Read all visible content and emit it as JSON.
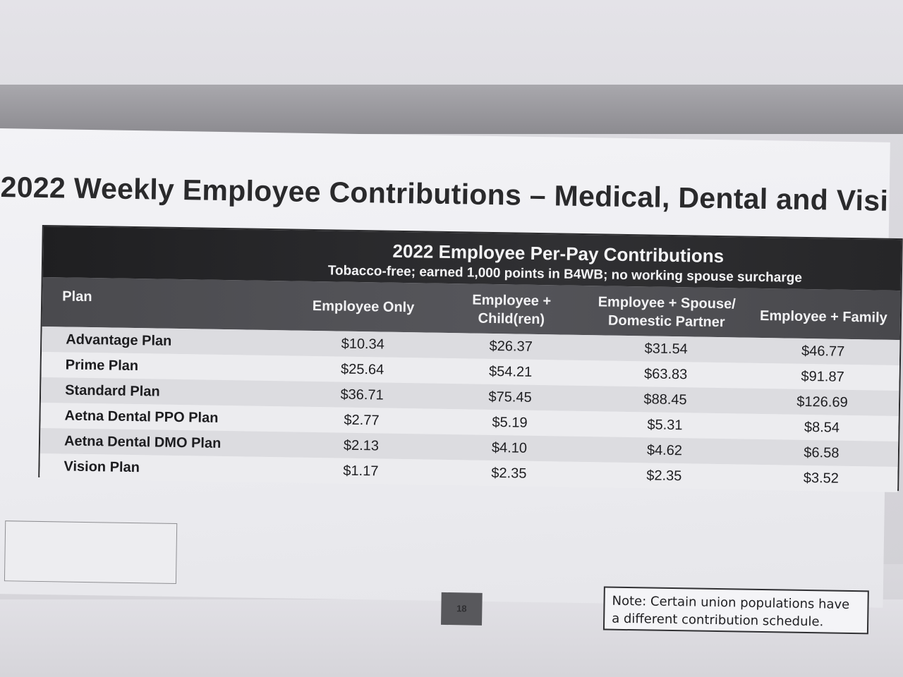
{
  "page_title": "2022 Weekly Employee Contributions – Medical, Dental and Visi",
  "table": {
    "title": "2022 Employee Per-Pay Contributions",
    "subtitle": "Tobacco-free; earned 1,000 points in B4WB; no working spouse surcharge",
    "columns": {
      "plan": "Plan",
      "employee_only": "Employee Only",
      "employee_children_l1": "Employee +",
      "employee_children_l2": "Child(ren)",
      "employee_spouse_l1": "Employee + Spouse/",
      "employee_spouse_l2": "Domestic Partner",
      "employee_family": "Employee + Family"
    },
    "rows": [
      {
        "plan": "Advantage Plan",
        "employee_only": "$10.34",
        "employee_children": "$26.37",
        "employee_spouse": "$31.54",
        "employee_family": "$46.77"
      },
      {
        "plan": "Prime Plan",
        "employee_only": "$25.64",
        "employee_children": "$54.21",
        "employee_spouse": "$63.83",
        "employee_family": "$91.87"
      },
      {
        "plan": "Standard Plan",
        "employee_only": "$36.71",
        "employee_children": "$75.45",
        "employee_spouse": "$88.45",
        "employee_family": "$126.69"
      },
      {
        "plan": "Aetna Dental PPO Plan",
        "employee_only": "$2.77",
        "employee_children": "$5.19",
        "employee_spouse": "$5.31",
        "employee_family": "$8.54"
      },
      {
        "plan": "Aetna Dental DMO Plan",
        "employee_only": "$2.13",
        "employee_children": "$4.10",
        "employee_spouse": "$4.62",
        "employee_family": "$6.58"
      },
      {
        "plan": "Vision Plan",
        "employee_only": "$1.17",
        "employee_children": "$2.35",
        "employee_spouse": "$2.35",
        "employee_family": "$3.52"
      }
    ]
  },
  "page_number": "18",
  "note": {
    "line1": "Note: Certain union populations have",
    "line2": "a different contribution schedule."
  }
}
